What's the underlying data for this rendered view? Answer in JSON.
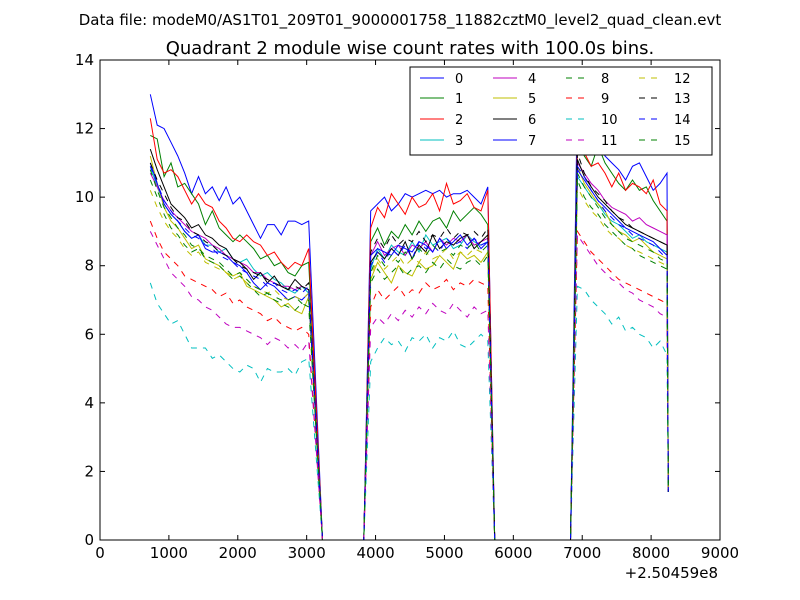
{
  "figure": {
    "suptitle": "Data file: modeM0/AS1T01_209T01_9000001758_11882cztM0_level2_quad_clean.evt"
  },
  "chart_data": {
    "type": "line",
    "title": "Quadrant 2 module wise count rates with 100.0s bins.",
    "xlabel": "",
    "ylabel": "",
    "xlim": [
      0,
      9000
    ],
    "ylim": [
      0,
      14
    ],
    "x_offset_label": "+2.50459e8",
    "x_ticks": [
      0,
      1000,
      2000,
      3000,
      4000,
      5000,
      6000,
      7000,
      8000,
      9000
    ],
    "y_ticks": [
      0,
      2,
      4,
      6,
      8,
      10,
      12,
      14
    ],
    "grid": false,
    "legend": {
      "placement": "top-right",
      "columns": 4
    },
    "segments": [
      {
        "x_start": 730,
        "x_end": 3030,
        "step": 100,
        "drop_x": 3230
      },
      {
        "x_start": 3930,
        "x_end": 5630,
        "step": 100,
        "drop_x": 5730
      },
      {
        "x_start": 6930,
        "x_end": 8230,
        "step": 100,
        "drop_x": null
      }
    ],
    "series": [
      {
        "name": "0",
        "color": "#0000ff",
        "dash": "solid",
        "values": [
          [
            13.0,
            12.1,
            12.0,
            11.6,
            11.2,
            10.7,
            10.1,
            10.6,
            10.1,
            10.3,
            9.9,
            10.3,
            9.8,
            10.0,
            9.6,
            9.2,
            8.8,
            9.2,
            9.2,
            8.9,
            9.3,
            9.3,
            9.2,
            9.3
          ],
          [
            9.6,
            9.8,
            10.0,
            9.6,
            9.8,
            10.1,
            10.0,
            10.1,
            10.2,
            10.1,
            10.2,
            10.0,
            10.1,
            10.1,
            10.2,
            10.0,
            9.8,
            10.3
          ],
          [
            13.0,
            12.5,
            12.2,
            11.6,
            11.2,
            11.0,
            10.8,
            10.5,
            10.9,
            11.0,
            10.6,
            10.2,
            10.4,
            10.7
          ]
        ]
      },
      {
        "name": "1",
        "color": "#008000",
        "dash": "solid",
        "values": [
          [
            11.8,
            11.7,
            10.6,
            11.0,
            10.3,
            10.4,
            10.1,
            9.8,
            9.2,
            9.6,
            9.1,
            8.9,
            8.7,
            8.9,
            8.7,
            8.5,
            8.2,
            8.3,
            8.0,
            8.1,
            7.8,
            7.7,
            8.0,
            8.1
          ],
          [
            8.7,
            9.1,
            8.6,
            9.0,
            8.8,
            9.2,
            8.9,
            9.3,
            9.0,
            9.3,
            9.4,
            9.1,
            9.6,
            9.3,
            9.5,
            9.7,
            9.5,
            9.2
          ],
          [
            11.8,
            11.2,
            10.9,
            11.5,
            11.0,
            10.7,
            10.4,
            10.2,
            10.5,
            10.2,
            10.3,
            9.9,
            9.6,
            9.3
          ]
        ]
      },
      {
        "name": "2",
        "color": "#ff0000",
        "dash": "solid",
        "values": [
          [
            12.3,
            11.1,
            10.7,
            10.8,
            10.6,
            10.2,
            9.8,
            10.1,
            9.8,
            9.7,
            9.3,
            9.1,
            8.8,
            8.7,
            8.9,
            8.7,
            8.6,
            8.3,
            8.4,
            8.1,
            7.9,
            8.1,
            8.0,
            8.5
          ],
          [
            9.1,
            9.7,
            9.4,
            10.1,
            9.8,
            9.5,
            10.0,
            9.7,
            9.8,
            10.1,
            9.6,
            10.4,
            9.8,
            9.9,
            10.1,
            9.7,
            9.6,
            10.2
          ],
          [
            11.5,
            11.3,
            10.9,
            11.0,
            10.7,
            10.3,
            10.7,
            10.2,
            10.4,
            10.3,
            10.1,
            10.5,
            9.8,
            9.6
          ]
        ]
      },
      {
        "name": "3",
        "color": "#00bfbf",
        "dash": "solid",
        "values": [
          [
            10.9,
            10.3,
            9.8,
            9.5,
            9.3,
            9.0,
            8.8,
            8.9,
            8.6,
            8.6,
            8.4,
            8.5,
            8.2,
            8.1,
            8.2,
            7.9,
            7.7,
            7.8,
            7.6,
            7.5,
            7.3,
            7.2,
            7.4,
            7.2
          ],
          [
            7.9,
            8.5,
            8.2,
            8.6,
            8.4,
            8.3,
            8.7,
            8.4,
            8.9,
            8.6,
            8.7,
            8.8,
            8.5,
            8.6,
            8.9,
            8.7,
            8.6,
            8.7
          ],
          [
            10.6,
            10.3,
            10.0,
            9.8,
            9.5,
            9.3,
            9.2,
            9.0,
            8.8,
            8.9,
            8.7,
            8.6,
            8.5,
            8.4
          ]
        ]
      },
      {
        "name": "4",
        "color": "#bf00bf",
        "dash": "solid",
        "values": [
          [
            10.7,
            10.3,
            9.9,
            9.6,
            9.4,
            9.2,
            9.0,
            8.9,
            8.8,
            8.6,
            8.5,
            8.3,
            8.2,
            8.1,
            8.0,
            7.8,
            7.8,
            7.6,
            7.5,
            7.4,
            7.4,
            7.3,
            7.4,
            7.3
          ],
          [
            8.3,
            8.7,
            8.3,
            8.5,
            8.6,
            8.3,
            8.6,
            8.5,
            8.7,
            8.4,
            8.8,
            8.6,
            8.8,
            8.7,
            8.9,
            8.6,
            8.7,
            8.8
          ],
          [
            11.0,
            10.7,
            10.4,
            10.2,
            9.9,
            9.7,
            9.6,
            9.5,
            9.3,
            9.4,
            9.2,
            9.1,
            9.0,
            8.9
          ]
        ]
      },
      {
        "name": "5",
        "color": "#bfbf00",
        "dash": "solid",
        "values": [
          [
            11.2,
            10.4,
            9.7,
            9.3,
            9.1,
            8.8,
            8.5,
            8.6,
            8.2,
            8.1,
            8.0,
            7.8,
            7.7,
            7.8,
            7.4,
            7.3,
            7.2,
            7.1,
            7.0,
            6.8,
            6.9,
            6.7,
            6.6,
            7.1
          ],
          [
            7.6,
            8.1,
            7.8,
            7.5,
            8.0,
            7.8,
            7.7,
            8.1,
            7.9,
            8.0,
            8.3,
            8.1,
            7.9,
            8.4,
            8.2,
            8.3,
            8.1,
            8.4
          ],
          [
            10.9,
            10.4,
            10.1,
            9.8,
            9.6,
            9.2,
            9.0,
            8.9,
            8.7,
            8.8,
            8.6,
            8.4,
            8.3,
            8.2
          ]
        ]
      },
      {
        "name": "6",
        "color": "#000000",
        "dash": "solid",
        "values": [
          [
            11.4,
            10.8,
            10.3,
            9.8,
            9.6,
            9.4,
            9.1,
            9.2,
            8.9,
            8.8,
            8.6,
            8.5,
            8.2,
            8.1,
            7.9,
            7.6,
            7.8,
            7.5,
            7.7,
            7.4,
            7.3,
            7.6,
            7.4,
            7.3
          ],
          [
            8.1,
            8.4,
            8.2,
            8.5,
            8.3,
            8.7,
            8.2,
            8.6,
            8.4,
            8.9,
            8.5,
            8.7,
            8.6,
            8.8,
            8.9,
            8.5,
            8.7,
            8.9
          ],
          [
            11.1,
            10.6,
            10.3,
            10.0,
            9.8,
            9.6,
            9.4,
            9.2,
            9.1,
            9.0,
            8.9,
            8.8,
            8.7,
            8.6
          ]
        ]
      },
      {
        "name": "7",
        "color": "#0000ff",
        "dash": "solid",
        "values": [
          [
            11.0,
            10.4,
            9.8,
            9.5,
            9.3,
            9.0,
            8.8,
            8.9,
            8.5,
            8.4,
            8.4,
            8.3,
            8.1,
            8.0,
            7.8,
            7.5,
            7.3,
            7.5,
            7.4,
            7.2,
            7.0,
            7.1,
            7.0,
            7.2
          ],
          [
            8.3,
            8.5,
            8.4,
            8.3,
            8.6,
            8.5,
            8.4,
            8.7,
            8.6,
            8.4,
            8.8,
            8.5,
            8.7,
            8.9,
            8.6,
            8.8,
            8.5,
            8.7
          ],
          [
            10.8,
            10.5,
            10.2,
            9.9,
            9.7,
            9.5,
            9.3,
            9.1,
            9.0,
            8.9,
            8.8,
            8.7,
            8.5,
            8.3
          ]
        ]
      },
      {
        "name": "8",
        "color": "#008000",
        "dash": "dashed",
        "values": [
          [
            10.5,
            10.0,
            9.5,
            9.1,
            8.9,
            8.6,
            8.4,
            8.5,
            8.2,
            8.1,
            8.0,
            7.8,
            7.6,
            7.7,
            7.5,
            7.3,
            7.1,
            7.2,
            7.0,
            6.9,
            6.8,
            6.7,
            6.9,
            6.8
          ],
          [
            7.5,
            7.9,
            7.6,
            7.8,
            8.0,
            7.7,
            7.9,
            8.0,
            7.8,
            8.1,
            7.9,
            8.2,
            8.0,
            7.9,
            8.1,
            8.2,
            8.0,
            8.3
          ],
          [
            10.5,
            10.0,
            9.7,
            9.5,
            9.2,
            9.0,
            8.8,
            8.6,
            8.5,
            8.3,
            8.2,
            8.1,
            8.0,
            7.9
          ]
        ]
      },
      {
        "name": "9",
        "color": "#ff0000",
        "dash": "dashed",
        "values": [
          [
            9.3,
            8.8,
            8.4,
            8.2,
            8.0,
            7.7,
            7.6,
            7.5,
            7.4,
            7.3,
            7.1,
            7.2,
            6.9,
            7.0,
            6.8,
            6.7,
            6.6,
            6.4,
            6.5,
            6.3,
            6.2,
            6.1,
            6.2,
            6.0
          ],
          [
            6.8,
            7.3,
            7.0,
            7.2,
            7.4,
            7.1,
            7.3,
            7.2,
            7.5,
            7.3,
            7.4,
            7.6,
            7.3,
            7.5,
            7.4,
            7.6,
            7.5,
            7.4
          ],
          [
            9.0,
            8.7,
            8.4,
            8.2,
            8.0,
            7.8,
            7.6,
            7.5,
            7.4,
            7.3,
            7.2,
            7.1,
            7.0,
            6.9
          ]
        ]
      },
      {
        "name": "10",
        "color": "#00bfbf",
        "dash": "dashed",
        "values": [
          [
            7.5,
            6.9,
            6.6,
            6.3,
            6.4,
            6.0,
            5.6,
            5.6,
            5.6,
            5.3,
            5.4,
            5.2,
            5.0,
            4.9,
            5.1,
            5.0,
            4.6,
            5.0,
            4.9,
            4.9,
            5.0,
            4.8,
            5.2,
            5.3
          ],
          [
            5.2,
            5.6,
            5.9,
            5.7,
            5.8,
            5.5,
            5.9,
            5.8,
            6.0,
            5.6,
            5.9,
            5.8,
            6.1,
            5.7,
            5.6,
            5.8,
            6.0,
            5.8
          ],
          [
            7.4,
            7.3,
            7.0,
            6.8,
            6.6,
            6.3,
            6.5,
            6.1,
            6.2,
            6.0,
            5.9,
            5.6,
            5.8,
            5.4
          ]
        ]
      },
      {
        "name": "11",
        "color": "#bf00bf",
        "dash": "dashed",
        "values": [
          [
            9.0,
            8.6,
            8.2,
            7.8,
            7.6,
            7.4,
            7.1,
            7.0,
            6.8,
            6.7,
            6.5,
            6.3,
            6.2,
            6.2,
            6.1,
            6.0,
            5.9,
            5.7,
            5.9,
            5.8,
            5.6,
            5.7,
            5.5,
            5.8
          ],
          [
            6.2,
            6.5,
            6.3,
            6.6,
            6.4,
            6.7,
            6.5,
            6.8,
            6.6,
            6.9,
            6.7,
            6.6,
            6.9,
            6.7,
            6.5,
            6.8,
            6.6,
            6.7
          ],
          [
            8.9,
            8.6,
            8.3,
            8.0,
            7.8,
            7.6,
            7.5,
            7.3,
            7.2,
            7.0,
            6.9,
            6.8,
            6.6,
            6.5
          ]
        ]
      },
      {
        "name": "12",
        "color": "#bfbf00",
        "dash": "dashed",
        "values": [
          [
            10.2,
            9.7,
            9.3,
            9.0,
            8.8,
            8.5,
            8.3,
            8.4,
            8.1,
            8.0,
            7.9,
            7.8,
            7.6,
            7.7,
            7.5,
            7.4,
            7.3,
            7.2,
            7.3,
            7.1,
            7.0,
            7.1,
            7.0,
            7.2
          ],
          [
            7.7,
            8.2,
            7.9,
            8.1,
            8.3,
            8.0,
            8.2,
            8.1,
            8.4,
            8.2,
            8.3,
            8.5,
            8.2,
            8.4,
            8.3,
            8.5,
            8.4,
            8.3
          ],
          [
            10.3,
            9.9,
            9.6,
            9.4,
            9.1,
            8.9,
            8.8,
            8.6,
            8.5,
            8.4,
            8.3,
            8.2,
            8.1,
            8.0
          ]
        ]
      },
      {
        "name": "13",
        "color": "#000000",
        "dash": "dashed",
        "values": [
          [
            11.0,
            10.5,
            10.1,
            9.7,
            9.4,
            9.3,
            9.0,
            8.9,
            8.7,
            8.6,
            8.4,
            8.3,
            8.2,
            8.0,
            7.9,
            7.8,
            7.7,
            7.6,
            7.5,
            7.4,
            7.3,
            7.4,
            7.3,
            7.5
          ],
          [
            8.4,
            8.8,
            8.5,
            8.9,
            8.6,
            8.8,
            8.7,
            9.0,
            8.7,
            8.9,
            8.8,
            9.1,
            8.8,
            9.0,
            8.9,
            9.0,
            8.8,
            9.1
          ],
          [
            11.3,
            10.7,
            10.3,
            10.1,
            9.9,
            9.6,
            9.4,
            9.3,
            9.1,
            9.0,
            8.9,
            8.8,
            8.7,
            8.6
          ]
        ]
      },
      {
        "name": "14",
        "color": "#0000ff",
        "dash": "dashed",
        "values": [
          [
            10.9,
            10.4,
            9.9,
            9.6,
            9.3,
            9.1,
            8.9,
            8.8,
            8.6,
            8.5,
            8.3,
            8.2,
            8.1,
            7.9,
            7.8,
            7.7,
            7.6,
            7.4,
            7.5,
            7.3,
            7.2,
            7.3,
            7.2,
            7.4
          ],
          [
            8.0,
            8.4,
            8.1,
            8.5,
            8.3,
            8.6,
            8.2,
            8.7,
            8.5,
            8.6,
            8.4,
            8.8,
            8.6,
            8.7,
            8.5,
            8.8,
            8.6,
            8.7
          ],
          [
            10.9,
            10.6,
            10.2,
            9.9,
            9.6,
            9.4,
            9.2,
            9.1,
            8.9,
            8.8,
            8.7,
            8.6,
            8.4,
            8.2
          ]
        ]
      },
      {
        "name": "15",
        "color": "#008000",
        "dash": "dashed",
        "values": [
          [
            10.8,
            10.2,
            9.7,
            9.4,
            9.1,
            8.9,
            8.6,
            8.5,
            8.3,
            8.2,
            8.1,
            7.9,
            7.7,
            7.8,
            7.6,
            7.4,
            7.3,
            7.2,
            7.1,
            7.0,
            7.0,
            7.1,
            6.9,
            7.0
          ],
          [
            7.8,
            8.3,
            8.0,
            8.3,
            8.1,
            8.4,
            8.2,
            8.5,
            8.3,
            8.6,
            8.4,
            8.5,
            8.3,
            8.6,
            8.5,
            8.7,
            8.4,
            8.6
          ],
          [
            10.7,
            10.3,
            10.0,
            9.7,
            9.4,
            9.2,
            9.0,
            8.8,
            8.7,
            8.6,
            8.5,
            8.4,
            8.2,
            8.1
          ]
        ]
      }
    ]
  }
}
